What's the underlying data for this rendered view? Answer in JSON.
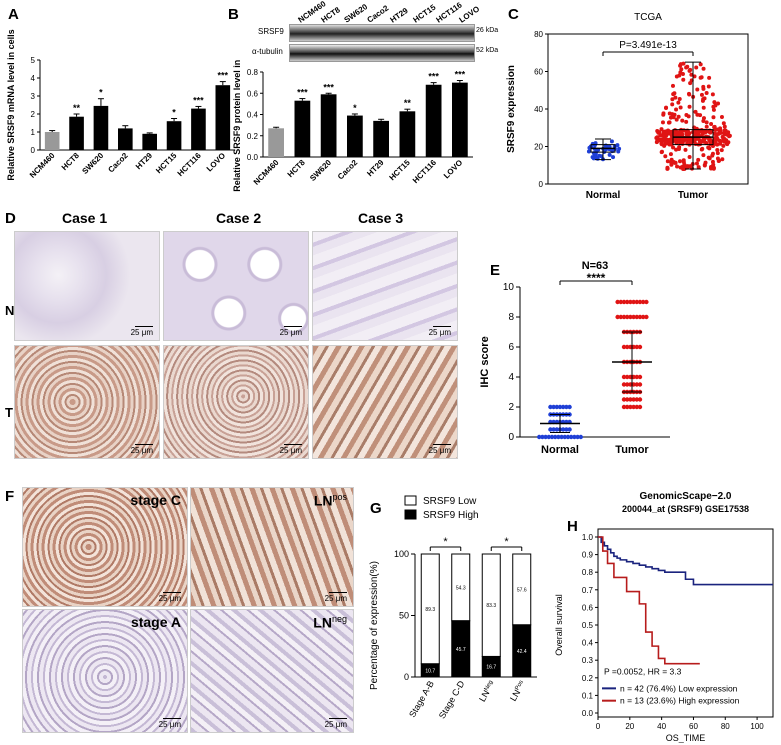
{
  "panels": {
    "A": {
      "letter": "A",
      "ylabel": "Relative SRSF9 mRNA level in cells",
      "yticks": [
        "0",
        "1",
        "2",
        "3",
        "4",
        "5"
      ],
      "stars": [
        "",
        "**",
        "*",
        "",
        "",
        "*",
        "***",
        "***"
      ]
    },
    "B": {
      "letter": "B",
      "ylabel": "Relative SRSF9 protein level in cells",
      "yticks": [
        "0.0",
        "0.2",
        "0.4",
        "0.6",
        "0.8"
      ],
      "stars": [
        "",
        "***",
        "***",
        "*",
        "",
        "**",
        "***",
        "***"
      ],
      "blot_labels": [
        "SRSF9",
        "α-tubulin"
      ],
      "kda_labels": [
        "26 kDa",
        "52 kDa"
      ]
    },
    "C": {
      "letter": "C",
      "title": "TCGA",
      "pvalue": "P=3.491e-13",
      "ylabel": "SRSF9 expression",
      "yticks": [
        "0",
        "20",
        "40",
        "60",
        "80"
      ],
      "xlabels": [
        "Normal",
        "Tumor"
      ]
    },
    "D": {
      "letter": "D",
      "cases": [
        "Case 1",
        "Case 2",
        "Case 3"
      ],
      "rows": [
        "N",
        "T"
      ],
      "scalebar": "25 μm"
    },
    "E": {
      "letter": "E",
      "title": "N=63",
      "sig": "****",
      "ylabel": "IHC score",
      "yticks": [
        "0",
        "2",
        "4",
        "6",
        "8",
        "10"
      ],
      "xlabels": [
        "Normal",
        "Tumor"
      ]
    },
    "F": {
      "letter": "F",
      "labels": [
        "stage C",
        "LN",
        "stage A",
        "LN"
      ],
      "superscripts": [
        "",
        "pos",
        "",
        "neg"
      ],
      "scalebar": "25 μm"
    },
    "G": {
      "letter": "G",
      "legend": [
        "SRSF9 Low",
        "SRSF9 High"
      ],
      "ylabel": "Percentage of expression(%)",
      "yticks": [
        "0",
        "50",
        "100"
      ],
      "sig": [
        "*",
        "*"
      ],
      "xlabels": [
        "Stage A-B",
        "Stage C-D",
        "LN",
        "LN"
      ],
      "xlabel_sups": [
        "",
        "",
        "Neg",
        "Pos"
      ]
    },
    "H": {
      "letter": "H",
      "title1": "GenomicScape−2.0",
      "title2": "200044_at (SRSF9) GSE17538",
      "ylabel": "Overall survival",
      "xlabel": "OS_TIME",
      "yticks": [
        "0.0",
        "0.1",
        "0.2",
        "0.3",
        "0.4",
        "0.5",
        "0.6",
        "0.7",
        "0.8",
        "0.9",
        "1.0"
      ],
      "xticks": [
        "0",
        "20",
        "40",
        "60",
        "80",
        "100"
      ],
      "stats": "P =0.0052, HR = 3.3",
      "legend": [
        "n = 42 (76.4%)  Low expression",
        "n = 13 (23.6%)  High expression"
      ]
    }
  },
  "chart_data": [
    {
      "type": "bar",
      "categories": [
        "NCM460",
        "HCT8",
        "SW620",
        "Caco2",
        "HT29",
        "HCT15",
        "HCT116",
        "LOVO"
      ],
      "values": [
        1.0,
        1.85,
        2.45,
        1.2,
        0.9,
        1.6,
        2.3,
        3.6
      ],
      "errors": [
        0.08,
        0.15,
        0.4,
        0.15,
        0.05,
        0.15,
        0.12,
        0.2
      ],
      "colors": [
        "#999999",
        "#000000",
        "#000000",
        "#000000",
        "#000000",
        "#000000",
        "#000000",
        "#000000"
      ],
      "ylim": [
        0,
        5
      ]
    },
    {
      "type": "bar",
      "categories": [
        "NCM460",
        "HCT8",
        "SW620",
        "Caco2",
        "HT29",
        "HCT15",
        "HCT116",
        "LOVO"
      ],
      "values": [
        0.27,
        0.53,
        0.59,
        0.39,
        0.34,
        0.43,
        0.68,
        0.7
      ],
      "errors": [
        0.01,
        0.02,
        0.01,
        0.015,
        0.015,
        0.02,
        0.02,
        0.02
      ],
      "colors": [
        "#999999",
        "#000000",
        "#000000",
        "#000000",
        "#000000",
        "#000000",
        "#000000",
        "#000000"
      ],
      "ylim": [
        0,
        0.8
      ]
    },
    {
      "type": "scatter",
      "categories": [
        "Normal",
        "Tumor"
      ],
      "series": [
        {
          "name": "Normal",
          "color": "#1f3fd6",
          "median": 19,
          "q1": 17,
          "q3": 21,
          "min": 13,
          "max": 24,
          "n": 41
        },
        {
          "name": "Tumor",
          "color": "#e01414",
          "median": 25,
          "q1": 21,
          "q3": 29,
          "min": 8,
          "max": 65,
          "n": 380
        }
      ],
      "ylim": [
        0,
        80
      ]
    },
    {
      "type": "scatter",
      "categories": [
        "Normal",
        "Tumor"
      ],
      "series": [
        {
          "name": "Normal",
          "color": "#1f3fd6",
          "mean": 0.9,
          "sd": 0.6,
          "values": [
            0,
            0.5,
            1,
            1.5,
            2
          ]
        },
        {
          "name": "Tumor",
          "color": "#e01414",
          "mean": 5.0,
          "sd": 2.0,
          "values": [
            2,
            2.5,
            3,
            3.5,
            4,
            5,
            6,
            7,
            8,
            9
          ]
        }
      ],
      "ylim": [
        0,
        10
      ]
    },
    {
      "type": "bar",
      "categories": [
        "Stage A-B",
        "Stage C-D",
        "LN Neg",
        "LN Pos"
      ],
      "series": [
        {
          "name": "SRSF9 Low",
          "values": [
            89.3,
            54.3,
            83.3,
            57.6
          ]
        },
        {
          "name": "SRSF9 High",
          "values": [
            10.7,
            45.7,
            16.7,
            42.4
          ]
        }
      ],
      "ylim": [
        0,
        100
      ]
    },
    {
      "type": "line",
      "series": [
        {
          "name": "n = 42 (76.4%)  Low expression",
          "color": "#1a237e",
          "x": [
            0,
            2,
            4,
            6,
            8,
            10,
            12,
            14,
            18,
            22,
            26,
            30,
            34,
            38,
            42,
            46,
            50,
            55,
            60,
            65,
            70,
            80,
            90,
            100,
            110
          ],
          "y": [
            1.0,
            0.97,
            0.95,
            0.93,
            0.91,
            0.89,
            0.88,
            0.87,
            0.86,
            0.85,
            0.84,
            0.83,
            0.82,
            0.81,
            0.8,
            0.8,
            0.8,
            0.76,
            0.73,
            0.73,
            0.73,
            0.73,
            0.73,
            0.73,
            0.73
          ]
        },
        {
          "name": "n = 13 (23.6%)  High expression",
          "color": "#b71c1c",
          "x": [
            0,
            3,
            6,
            10,
            14,
            18,
            22,
            26,
            30,
            34,
            38,
            42,
            50,
            60,
            64
          ],
          "y": [
            1.0,
            0.92,
            0.85,
            0.77,
            0.77,
            0.69,
            0.69,
            0.62,
            0.46,
            0.38,
            0.31,
            0.28,
            0.28,
            0.28,
            0.28
          ]
        }
      ],
      "xlim": [
        0,
        110
      ],
      "ylim": [
        0,
        1
      ]
    }
  ]
}
